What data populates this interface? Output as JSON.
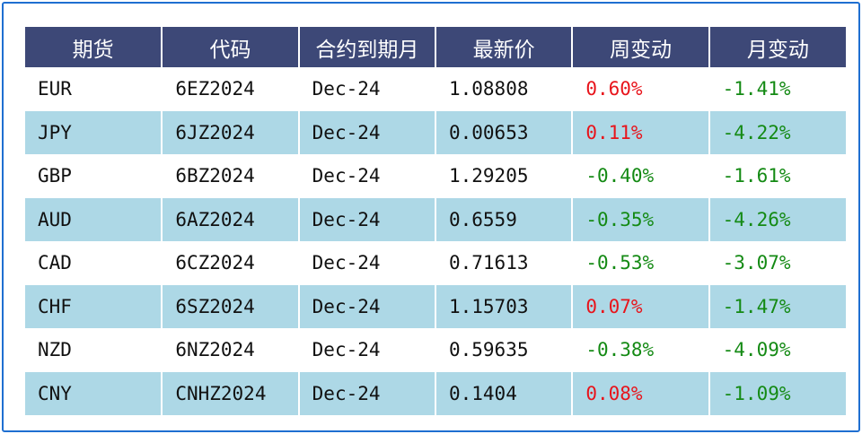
{
  "table": {
    "headers": [
      "期货",
      "代码",
      "合约到期月",
      "最新价",
      "周变动",
      "月变动"
    ],
    "rows": [
      {
        "currency": "EUR",
        "code": "6EZ2024",
        "expiry": "Dec-24",
        "last": "1.08808",
        "week": "0.60%",
        "month": "-1.41%"
      },
      {
        "currency": "JPY",
        "code": "6JZ2024",
        "expiry": "Dec-24",
        "last": "0.00653",
        "week": "0.11%",
        "month": "-4.22%"
      },
      {
        "currency": "GBP",
        "code": "6BZ2024",
        "expiry": "Dec-24",
        "last": "1.29205",
        "week": "-0.40%",
        "month": "-1.61%"
      },
      {
        "currency": "AUD",
        "code": "6AZ2024",
        "expiry": "Dec-24",
        "last": "0.6559",
        "week": "-0.35%",
        "month": "-4.26%"
      },
      {
        "currency": "CAD",
        "code": "6CZ2024",
        "expiry": "Dec-24",
        "last": "0.71613",
        "week": "-0.53%",
        "month": "-3.07%"
      },
      {
        "currency": "CHF",
        "code": "6SZ2024",
        "expiry": "Dec-24",
        "last": "1.15703",
        "week": "0.07%",
        "month": "-1.47%"
      },
      {
        "currency": "NZD",
        "code": "6NZ2024",
        "expiry": "Dec-24",
        "last": "0.59635",
        "week": "-0.38%",
        "month": "-4.09%"
      },
      {
        "currency": "CNY",
        "code": "CNHZ2024",
        "expiry": "Dec-24",
        "last": "0.1404",
        "week": "0.08%",
        "month": "-1.09%"
      }
    ]
  },
  "colors": {
    "header_bg": "#3d4877",
    "stripe_bg": "#add8e6",
    "positive": "#e8141b",
    "negative": "#148a14",
    "frame_border": "#1f6fd1"
  }
}
